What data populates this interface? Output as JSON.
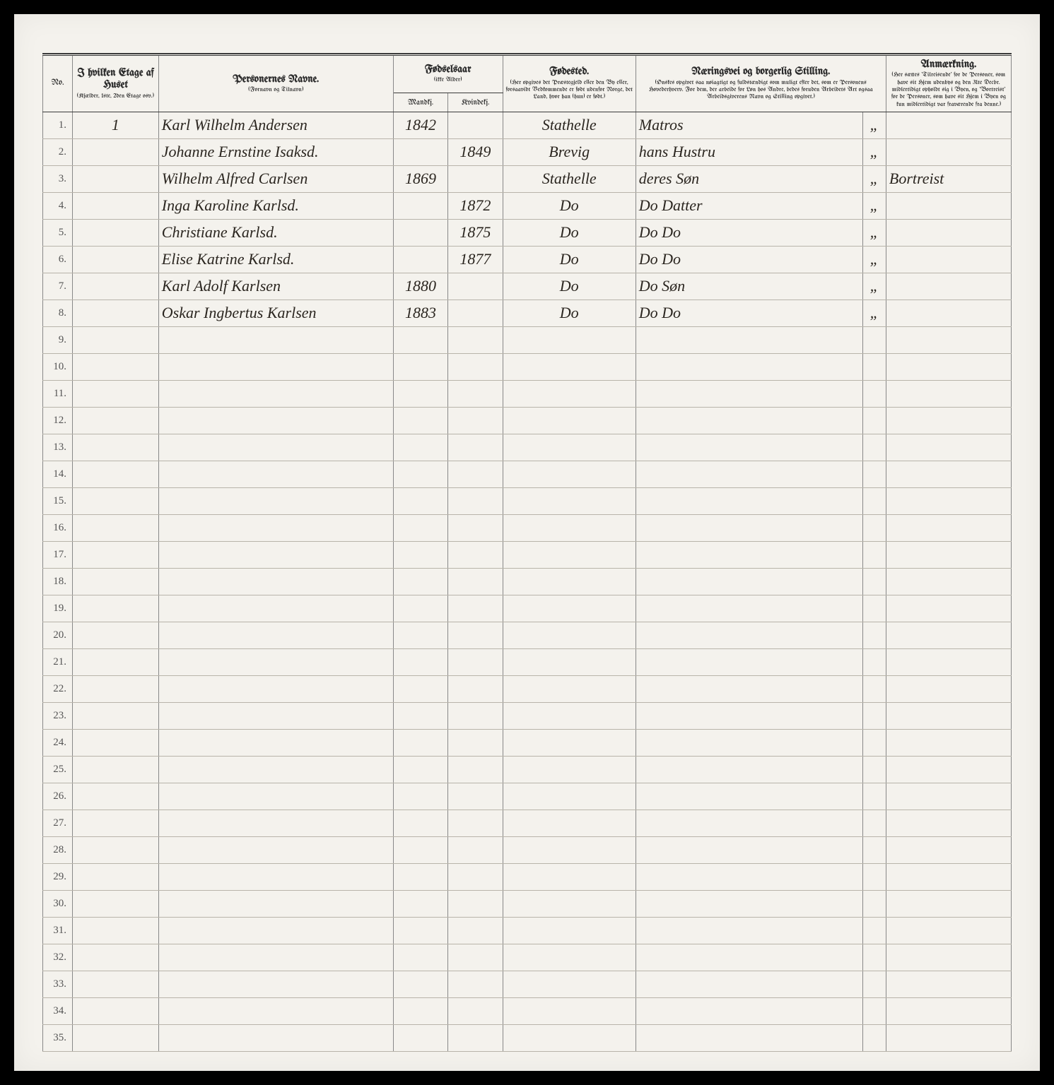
{
  "headers": {
    "no": "No.",
    "etage_title": "I hvilken Etage af Huset",
    "etage_sub": "(Kjælder, 1ste, 2den Etage osv.)",
    "name_title": "Personernes Navne.",
    "name_sub": "(Fornavn og Tilnavn)",
    "birth_title": "Fødselsaar",
    "birth_sub": "(ikke Alder)",
    "birth_m": "Mandkj.",
    "birth_f": "Kvindekj.",
    "place_title": "Fødested.",
    "place_sub": "(Her opgives det Præstegjeld eller den By eller, forsaavidt Vedkommende er født udenfor Norge, det Land, hvor han (hun) er født.)",
    "occ_title": "Næringsvei og borgerlig Stilling.",
    "occ_sub": "(Ønskes opgivet saa nøiagtigt og fuldstændigt som muligt efter det, som er Personens Hovederhverv. For dem, der arbeide for Løn hos Andre, bedes foruden Arbeidets Art ogsaa Arbeidsgiverens Navn og Stilling opgivet.)",
    "note_title": "Anmærkning.",
    "note_sub": "(Her sættes 'Tilreisende' for de Personer, som have sit Hjem udenbys og den 31te Decbr. midlertidigt opholdt sig i Byen, og 'Bortreist' for de Personer, som have sit Hjem i Byen og kun midlertidigt var fraværende fra denne.)"
  },
  "total_rows": 35,
  "rows": [
    {
      "no": "1.",
      "etage": "1",
      "name": "Karl Wilhelm Andersen",
      "ym": "1842",
      "yf": "",
      "place": "Stathelle",
      "occ": "Matros",
      "mark": "„",
      "note": ""
    },
    {
      "no": "2.",
      "etage": "",
      "name": "Johanne Ernstine Isaksd.",
      "ym": "",
      "yf": "1849",
      "place": "Brevig",
      "occ": "hans Hustru",
      "mark": "„",
      "note": ""
    },
    {
      "no": "3.",
      "etage": "",
      "name": "Wilhelm Alfred Carlsen",
      "ym": "1869",
      "yf": "",
      "place": "Stathelle",
      "occ": "deres  Søn",
      "mark": "„",
      "note": "Bortreist"
    },
    {
      "no": "4.",
      "etage": "",
      "name": "Inga Karoline Karlsd.",
      "ym": "",
      "yf": "1872",
      "place": "Do",
      "occ": "Do   Datter",
      "mark": "„",
      "note": ""
    },
    {
      "no": "5.",
      "etage": "",
      "name": "Christiane   Karlsd.",
      "ym": "",
      "yf": "1875",
      "place": "Do",
      "occ": "Do    Do",
      "mark": "„",
      "note": ""
    },
    {
      "no": "6.",
      "etage": "",
      "name": "Elise Katrine  Karlsd.",
      "ym": "",
      "yf": "1877",
      "place": "Do",
      "occ": "Do    Do",
      "mark": "„",
      "note": ""
    },
    {
      "no": "7.",
      "etage": "",
      "name": "Karl Adolf   Karlsen",
      "ym": "1880",
      "yf": "",
      "place": "Do",
      "occ": "Do   Søn",
      "mark": "„",
      "note": ""
    },
    {
      "no": "8.",
      "etage": "",
      "name": "Oskar Ingbertus Karlsen",
      "ym": "1883",
      "yf": "",
      "place": "Do",
      "occ": "Do    Do",
      "mark": "„",
      "note": ""
    }
  ]
}
